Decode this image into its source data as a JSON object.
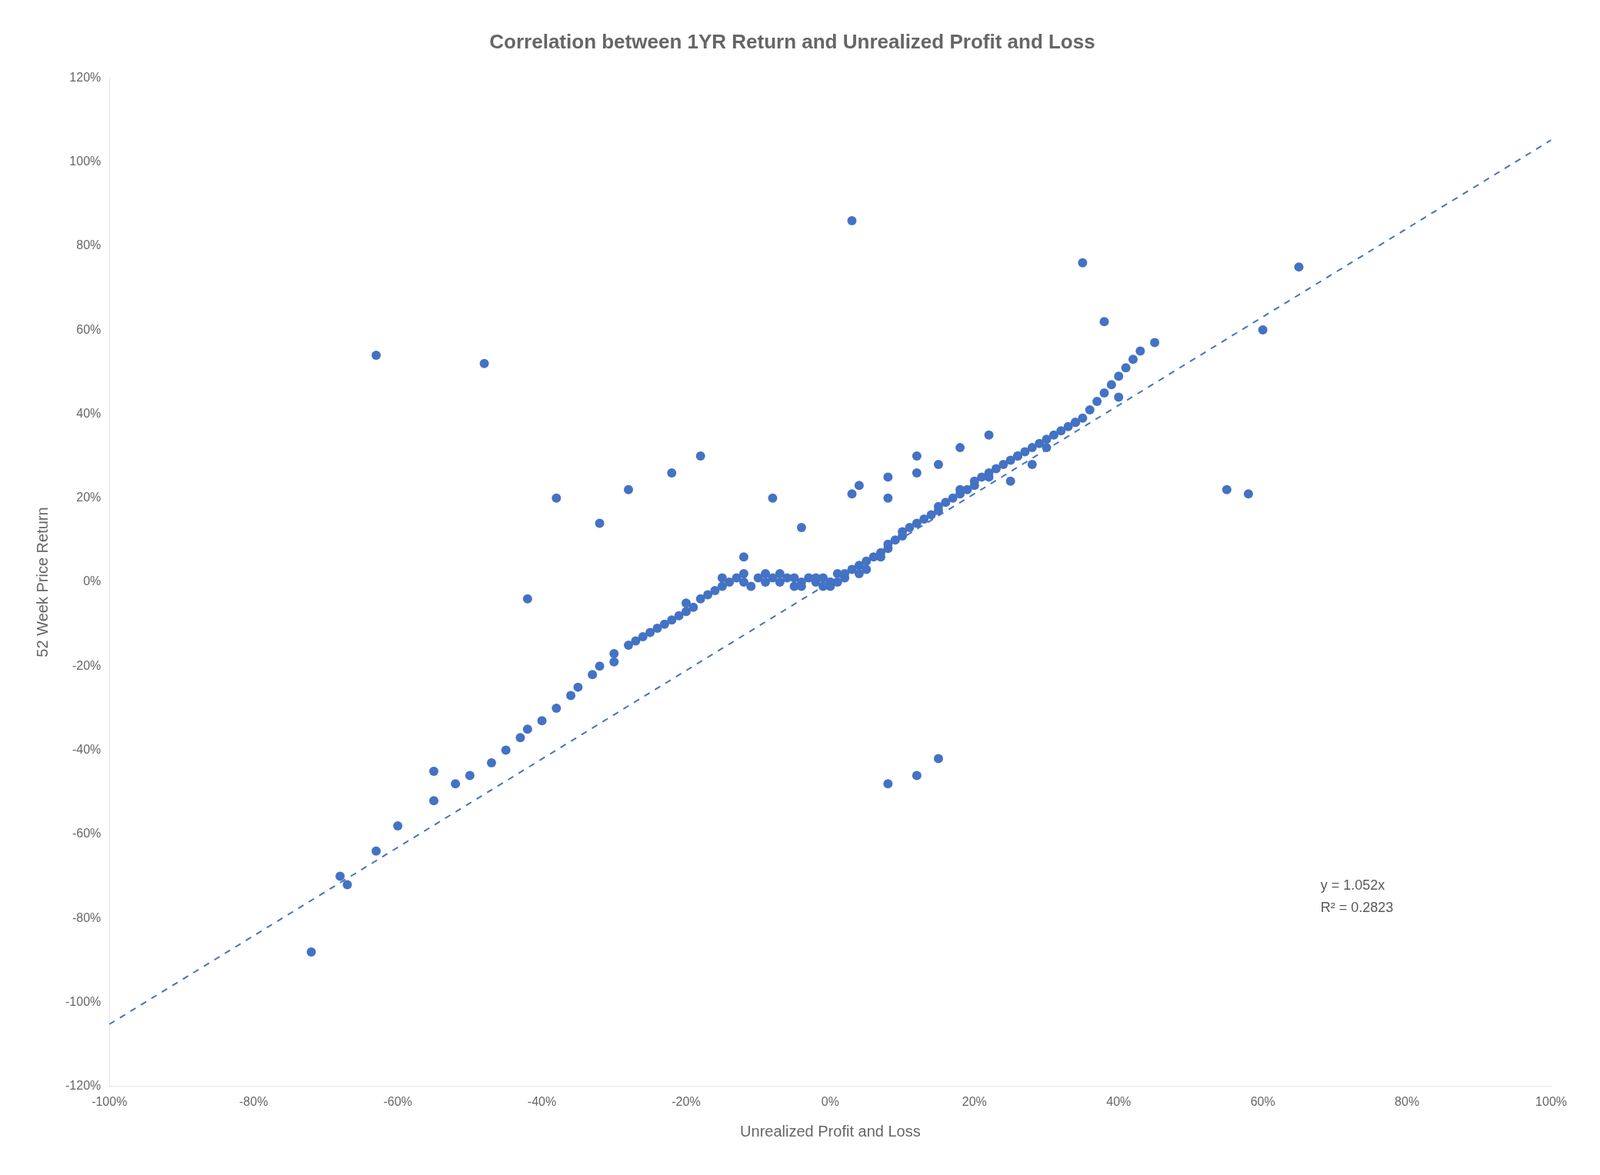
{
  "chart_data": {
    "type": "scatter",
    "title": "Correlation between 1YR Return and Unrealized Profit and Loss",
    "xlabel": "Unrealized Profit and Loss",
    "ylabel": "52 Week Price Return",
    "xlim": [
      -1.0,
      1.0
    ],
    "ylim": [
      -1.2,
      1.2
    ],
    "xticks": [
      {
        "value": -1.0,
        "label": "-100%"
      },
      {
        "value": -0.8,
        "label": "-80%"
      },
      {
        "value": -0.6,
        "label": "-60%"
      },
      {
        "value": -0.4,
        "label": "-40%"
      },
      {
        "value": -0.2,
        "label": "-20%"
      },
      {
        "value": 0.0,
        "label": "0%"
      },
      {
        "value": 0.2,
        "label": "20%"
      },
      {
        "value": 0.4,
        "label": "40%"
      },
      {
        "value": 0.6,
        "label": "60%"
      },
      {
        "value": 0.8,
        "label": "80%"
      },
      {
        "value": 1.0,
        "label": "100%"
      }
    ],
    "yticks": [
      {
        "value": -1.2,
        "label": "-120%"
      },
      {
        "value": -1.0,
        "label": "-100%"
      },
      {
        "value": -0.8,
        "label": "-80%"
      },
      {
        "value": -0.6,
        "label": "-60%"
      },
      {
        "value": -0.4,
        "label": "-40%"
      },
      {
        "value": -0.2,
        "label": "-20%"
      },
      {
        "value": 0.0,
        "label": "0%"
      },
      {
        "value": 0.2,
        "label": "20%"
      },
      {
        "value": 0.4,
        "label": "40%"
      },
      {
        "value": 0.6,
        "label": "60%"
      },
      {
        "value": 0.8,
        "label": "80%"
      },
      {
        "value": 1.0,
        "label": "100%"
      },
      {
        "value": 1.2,
        "label": "120%"
      }
    ],
    "grid": false,
    "series": [
      {
        "type": "scatter",
        "marker": "circle",
        "color": "#4472C4",
        "x": [
          -0.72,
          -0.67,
          -0.63,
          -0.6,
          -0.55,
          -0.52,
          -0.5,
          -0.47,
          -0.45,
          -0.43,
          -0.42,
          -0.4,
          -0.38,
          -0.36,
          -0.35,
          -0.33,
          -0.32,
          -0.3,
          -0.3,
          -0.28,
          -0.27,
          -0.26,
          -0.25,
          -0.24,
          -0.23,
          -0.22,
          -0.21,
          -0.2,
          -0.2,
          -0.19,
          -0.18,
          -0.17,
          -0.16,
          -0.15,
          -0.15,
          -0.14,
          -0.13,
          -0.12,
          -0.12,
          -0.11,
          -0.1,
          -0.09,
          -0.09,
          -0.08,
          -0.07,
          -0.07,
          -0.06,
          -0.05,
          -0.05,
          -0.04,
          -0.03,
          -0.02,
          -0.02,
          -0.01,
          -0.01,
          0.0,
          0.0,
          0.01,
          0.01,
          0.02,
          0.02,
          0.03,
          0.04,
          0.04,
          0.05,
          0.05,
          0.06,
          0.07,
          0.07,
          0.08,
          0.08,
          0.09,
          0.1,
          0.1,
          0.11,
          0.12,
          0.13,
          0.14,
          0.15,
          0.15,
          0.16,
          0.17,
          0.18,
          0.19,
          0.2,
          0.2,
          0.21,
          0.22,
          0.23,
          0.24,
          0.25,
          0.26,
          0.27,
          0.28,
          0.29,
          0.3,
          0.31,
          0.32,
          0.33,
          0.34,
          0.35,
          0.36,
          0.37,
          0.38,
          0.39,
          0.4,
          0.41,
          0.42,
          0.43,
          0.45,
          0.55,
          0.58,
          0.03,
          0.08,
          0.12,
          0.15,
          0.18,
          0.22,
          0.25,
          0.28,
          -0.42,
          -0.38,
          -0.32,
          -0.28,
          -0.22,
          -0.18,
          -0.12,
          -0.08,
          -0.04,
          0.0,
          0.04,
          0.08,
          0.12,
          0.15,
          0.18,
          0.22,
          0.26,
          0.3,
          0.34,
          0.38,
          -0.68,
          -0.63,
          -0.55,
          -0.48,
          0.35,
          0.4,
          0.6,
          0.65,
          -0.04,
          0.03,
          0.08,
          0.12
        ],
        "values": [
          -0.88,
          -0.72,
          -0.64,
          -0.58,
          -0.52,
          -0.48,
          -0.46,
          -0.43,
          -0.4,
          -0.37,
          -0.35,
          -0.33,
          -0.3,
          -0.27,
          -0.25,
          -0.22,
          -0.2,
          -0.19,
          -0.17,
          -0.15,
          -0.14,
          -0.13,
          -0.12,
          -0.11,
          -0.1,
          -0.09,
          -0.08,
          -0.07,
          -0.05,
          -0.06,
          -0.04,
          -0.03,
          -0.02,
          -0.01,
          0.01,
          0.0,
          0.01,
          0.0,
          0.02,
          -0.01,
          0.01,
          0.02,
          0.0,
          0.01,
          0.02,
          0.0,
          0.01,
          -0.01,
          0.01,
          0.0,
          0.01,
          0.0,
          0.01,
          -0.01,
          0.01,
          0.0,
          -0.01,
          0.02,
          0.0,
          0.01,
          0.02,
          0.03,
          0.02,
          0.04,
          0.03,
          0.05,
          0.06,
          0.07,
          0.06,
          0.08,
          0.09,
          0.1,
          0.11,
          0.12,
          0.13,
          0.14,
          0.15,
          0.16,
          0.17,
          0.18,
          0.19,
          0.2,
          0.21,
          0.22,
          0.23,
          0.24,
          0.25,
          0.26,
          0.27,
          0.28,
          0.29,
          0.3,
          0.31,
          0.32,
          0.33,
          0.34,
          0.35,
          0.36,
          0.37,
          0.38,
          0.39,
          0.41,
          0.43,
          0.45,
          0.47,
          0.49,
          0.51,
          0.53,
          0.55,
          0.57,
          0.22,
          0.21,
          0.86,
          -0.48,
          -0.46,
          -0.42,
          0.22,
          0.25,
          0.24,
          0.28,
          -0.04,
          0.2,
          0.14,
          0.22,
          0.26,
          0.3,
          0.06,
          0.2,
          0.13,
          0.0,
          0.23,
          0.25,
          0.26,
          0.28,
          0.32,
          0.35,
          0.3,
          0.32,
          0.38,
          0.62,
          -0.7,
          0.54,
          -0.45,
          0.52,
          0.76,
          0.44,
          0.6,
          0.75,
          -0.01,
          0.21,
          0.2,
          0.3
        ]
      },
      {
        "type": "line",
        "line_style": "dashed",
        "color": "#4472C4",
        "x": [
          -1.0,
          1.0
        ],
        "values": [
          -1.052,
          1.052
        ]
      }
    ],
    "annotations": [
      {
        "text": "y = 1.052x\nR² = 0.2823",
        "x": 0.68,
        "y": -0.75
      }
    ]
  }
}
